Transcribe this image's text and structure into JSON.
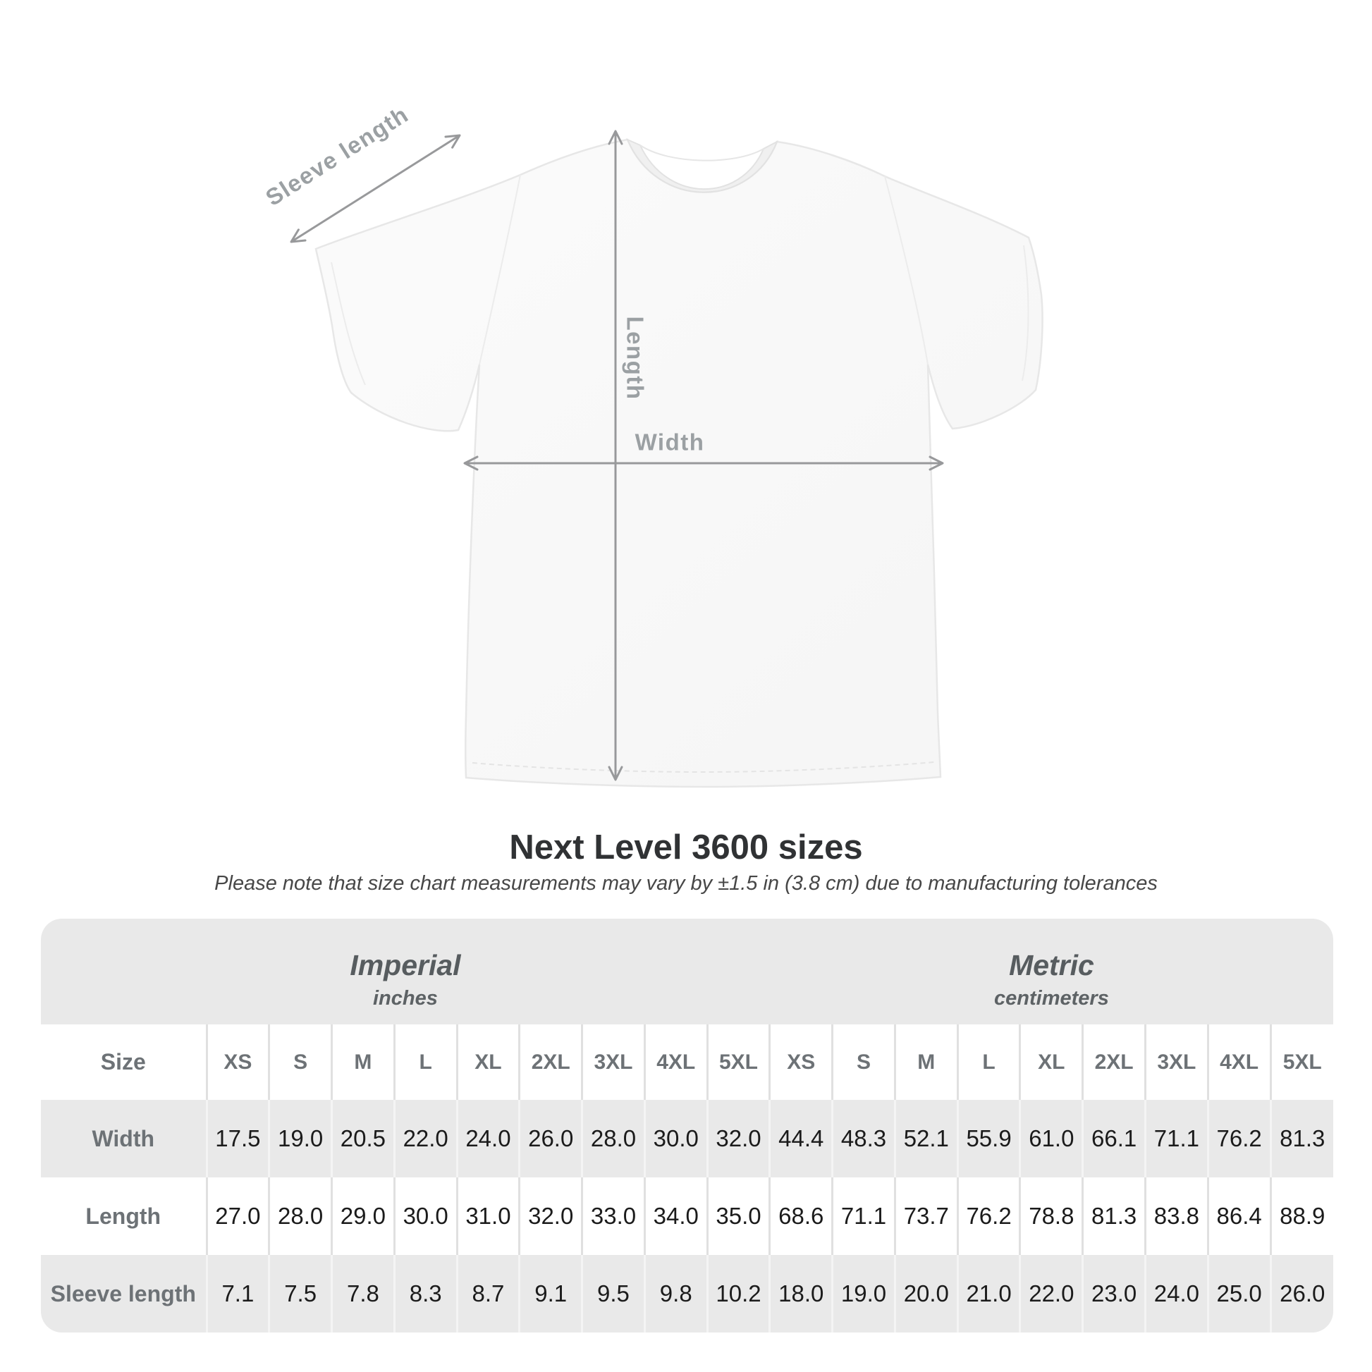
{
  "figure": {
    "labels": {
      "sleeve_length": "Sleeve length",
      "length": "Length",
      "width": "Width"
    },
    "line_color": "#98999b",
    "label_color": "#9ba0a3"
  },
  "heading": {
    "title": "Next Level 3600 sizes",
    "note": "Please note that size chart measurements may vary by ±1.5 in (3.8 cm) due to manufacturing tolerances"
  },
  "table": {
    "groups": [
      {
        "label": "Imperial",
        "sublabel": "inches"
      },
      {
        "label": "Metric",
        "sublabel": "centimeters"
      }
    ],
    "size_header": "Size",
    "sizes": [
      "XS",
      "S",
      "M",
      "L",
      "XL",
      "2XL",
      "3XL",
      "4XL",
      "5XL"
    ],
    "rows": [
      {
        "label": "Width",
        "imperial": [
          "17.5",
          "19.0",
          "20.5",
          "22.0",
          "24.0",
          "26.0",
          "28.0",
          "30.0",
          "32.0"
        ],
        "metric": [
          "44.4",
          "48.3",
          "52.1",
          "55.9",
          "61.0",
          "66.1",
          "71.1",
          "76.2",
          "81.3"
        ]
      },
      {
        "label": "Length",
        "imperial": [
          "27.0",
          "28.0",
          "29.0",
          "30.0",
          "31.0",
          "32.0",
          "33.0",
          "34.0",
          "35.0"
        ],
        "metric": [
          "68.6",
          "71.1",
          "73.7",
          "76.2",
          "78.8",
          "81.3",
          "83.8",
          "86.4",
          "88.9"
        ]
      },
      {
        "label": "Sleeve length",
        "imperial": [
          "7.1",
          "7.5",
          "7.8",
          "8.3",
          "8.7",
          "9.1",
          "9.5",
          "9.8",
          "10.2"
        ],
        "metric": [
          "18.0",
          "19.0",
          "20.0",
          "21.0",
          "22.0",
          "23.0",
          "24.0",
          "25.0",
          "26.0"
        ]
      }
    ],
    "colors": {
      "card_bg": "#e9e9e9",
      "row_white": "#ffffff",
      "label_text": "#6d7276",
      "value_text": "#1b1b1b"
    }
  },
  "chart_data": {
    "type": "table",
    "title": "Next Level 3600 sizes",
    "note": "Measurements may vary by ±1.5 in (3.8 cm) due to manufacturing tolerances",
    "columns": [
      "XS",
      "S",
      "M",
      "L",
      "XL",
      "2XL",
      "3XL",
      "4XL",
      "5XL"
    ],
    "units": {
      "imperial": "inches",
      "metric": "centimeters"
    },
    "series": [
      {
        "name": "Width (in)",
        "values": [
          17.5,
          19.0,
          20.5,
          22.0,
          24.0,
          26.0,
          28.0,
          30.0,
          32.0
        ]
      },
      {
        "name": "Length (in)",
        "values": [
          27.0,
          28.0,
          29.0,
          30.0,
          31.0,
          32.0,
          33.0,
          34.0,
          35.0
        ]
      },
      {
        "name": "Sleeve length (in)",
        "values": [
          7.1,
          7.5,
          7.8,
          8.3,
          8.7,
          9.1,
          9.5,
          9.8,
          10.2
        ]
      },
      {
        "name": "Width (cm)",
        "values": [
          44.4,
          48.3,
          52.1,
          55.9,
          61.0,
          66.1,
          71.1,
          76.2,
          81.3
        ]
      },
      {
        "name": "Length (cm)",
        "values": [
          68.6,
          71.1,
          73.7,
          76.2,
          78.8,
          81.3,
          83.8,
          86.4,
          88.9
        ]
      },
      {
        "name": "Sleeve length (cm)",
        "values": [
          18.0,
          19.0,
          20.0,
          21.0,
          22.0,
          23.0,
          24.0,
          25.0,
          26.0
        ]
      }
    ]
  }
}
